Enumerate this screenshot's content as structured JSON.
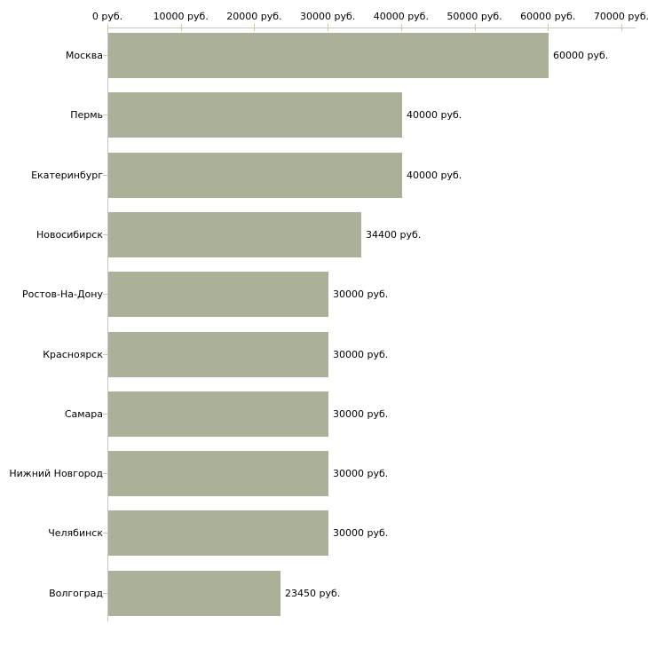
{
  "chart_data": {
    "type": "bar",
    "orientation": "horizontal",
    "title": "",
    "unit_suffix": " руб.",
    "categories": [
      "Москва",
      "Пермь",
      "Екатеринбург",
      "Новосибирск",
      "Ростов-На-Дону",
      "Красноярск",
      "Самара",
      "Нижний Новгород",
      "Челябинск",
      "Волгоград"
    ],
    "values": [
      60000,
      40000,
      40000,
      34400,
      30000,
      30000,
      30000,
      30000,
      30000,
      23450
    ],
    "bar_labels": [
      "60000 руб.",
      "40000 руб.",
      "40000 руб.",
      "34400 руб.",
      "30000 руб.",
      "30000 руб.",
      "30000 руб.",
      "30000 руб.",
      "30000 руб.",
      "23450 руб."
    ],
    "x_axis": {
      "position": "top",
      "range": [
        0,
        70000
      ],
      "ticks": [
        0,
        10000,
        20000,
        30000,
        40000,
        50000,
        60000,
        70000
      ],
      "tick_labels": [
        "0 руб.",
        "10000 руб.",
        "20000 руб.",
        "30000 руб.",
        "40000 руб.",
        "50000 руб.",
        "60000 руб.",
        "70000 руб."
      ]
    },
    "grid": false,
    "legend": false,
    "colors": {
      "bar": "#ABB199",
      "axis_line": "#C6C6C6",
      "tick_mark": "#CCCC99",
      "text": "#000000",
      "background": "#FFFFFF"
    }
  }
}
